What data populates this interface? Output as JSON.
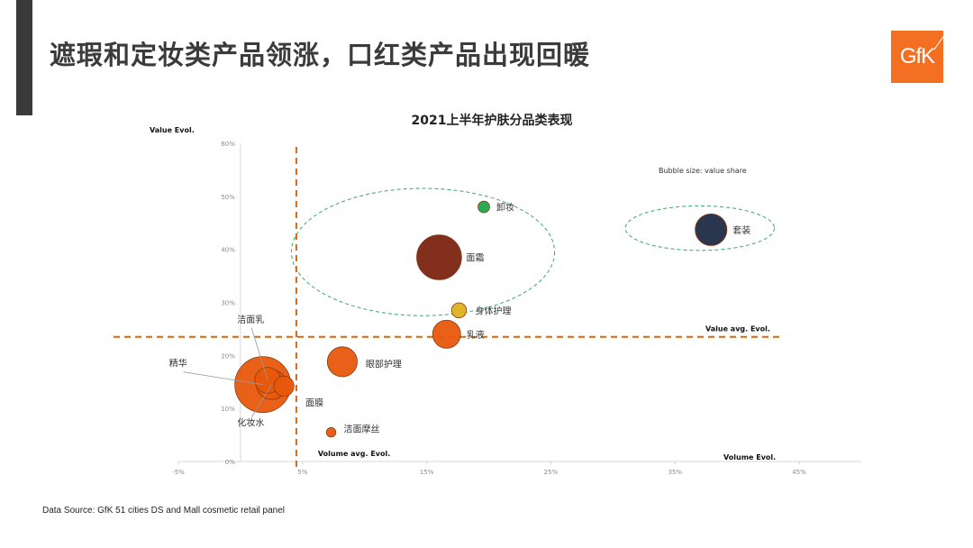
{
  "slide": {
    "title": "遮瑕和定妆类产品领涨，口红类产品出现回暖",
    "logo_text": "GfK",
    "footer": "Data Source: GfK 51 cities DS and Mall cosmetic retail panel"
  },
  "colors": {
    "title": "#3b3b3b",
    "logo": "#f36f21",
    "orange": "#e8580c",
    "dark_red": "#7b2412",
    "green": "#1fa64a",
    "yellow": "#e0b01f",
    "navy": "#1f2a44",
    "avg_line": "#d4690f",
    "cluster_ring": "#3aa86a"
  },
  "chart_data": {
    "type": "scatter",
    "title": "2021上半年护肤分品类表现",
    "xlabel": "Volume Evol.",
    "ylabel": "Value Evol.",
    "xlim": [
      -5,
      50
    ],
    "ylim": [
      0,
      60
    ],
    "x_ticks": [
      "-5%",
      "5%",
      "15%",
      "25%",
      "35%",
      "45%"
    ],
    "x_tick_values": [
      -5,
      5,
      15,
      25,
      35,
      45
    ],
    "y_ticks": [
      "0%",
      "10%",
      "20%",
      "30%",
      "40%",
      "50%",
      "60%"
    ],
    "y_tick_values": [
      0,
      10,
      20,
      30,
      40,
      50,
      60
    ],
    "bubble_note": "Bubble size: value share",
    "volume_avg": {
      "x": 4.5,
      "label": "Volume avg. Evol."
    },
    "value_avg": {
      "y": 23.5,
      "label": "Value avg. Evol."
    },
    "clusters": [
      {
        "center": [
          14.7,
          39.5
        ],
        "radii": [
          10.6,
          12.0
        ]
      },
      {
        "center": [
          37.0,
          44.0
        ],
        "radii": [
          6.0,
          4.2
        ]
      }
    ],
    "points": [
      {
        "name": "卸妆",
        "x": 19.6,
        "y": 48.0,
        "share": 0.6,
        "color": "#1fa64a"
      },
      {
        "name": "套装",
        "x": 37.9,
        "y": 43.7,
        "share": 4.5,
        "color": "#1f2a44"
      },
      {
        "name": "面霜",
        "x": 16.0,
        "y": 38.5,
        "share": 9.0,
        "color": "#7b2412"
      },
      {
        "name": "身体护理",
        "x": 17.6,
        "y": 28.5,
        "share": 1.0,
        "color": "#e0b01f"
      },
      {
        "name": "乳液",
        "x": 16.6,
        "y": 24.0,
        "share": 3.5,
        "color": "#e8580c"
      },
      {
        "name": "眼部护理",
        "x": 8.2,
        "y": 18.8,
        "share": 4.0,
        "color": "#e8580c"
      },
      {
        "name": "洁面乳",
        "x": 2.2,
        "y": 15.3,
        "share": 3.0,
        "color": "#e8580c"
      },
      {
        "name": "精华",
        "x": 1.8,
        "y": 14.5,
        "share": 14.0,
        "color": "#e8580c"
      },
      {
        "name": "化妆水",
        "x": 2.5,
        "y": 14.5,
        "share": 4.0,
        "color": "#e8580c"
      },
      {
        "name": "面膜",
        "x": 3.5,
        "y": 14.2,
        "share": 1.8,
        "color": "#e8580c"
      },
      {
        "name": "洁面摩丝",
        "x": 7.3,
        "y": 5.5,
        "share": 0.4,
        "color": "#e8580c"
      }
    ]
  }
}
